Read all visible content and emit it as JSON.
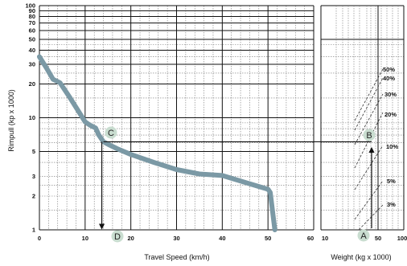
{
  "chart_data": {
    "type": "line",
    "x_axis": {
      "label": "Travel Speed (km/h)",
      "range": [
        0,
        60
      ],
      "ticks": [
        0,
        10,
        20,
        30,
        40,
        50,
        60
      ],
      "tick_labels": [
        "0",
        "10",
        "20",
        "30",
        "40",
        "50",
        "60"
      ],
      "minor_step": 2
    },
    "y_axis": {
      "label": "Rimpull  (kp x 1000)",
      "scale": "log",
      "range": [
        1,
        100
      ],
      "ticks": [
        1,
        2,
        3,
        5,
        10,
        20,
        30,
        40,
        50,
        60,
        70,
        80,
        90,
        100
      ],
      "tick_labels": [
        "1",
        "2",
        "3",
        "5",
        "10",
        "20",
        "30",
        "40",
        "50",
        "60",
        "70",
        "80",
        "90",
        "100"
      ]
    },
    "series": [
      {
        "color": "#7b99a5",
        "points": [
          [
            0,
            35
          ],
          [
            1.5,
            28
          ],
          [
            3,
            22
          ],
          [
            4.5,
            20.5
          ],
          [
            6.5,
            15.5
          ],
          [
            8.5,
            11.5
          ],
          [
            10,
            9.2
          ],
          [
            11,
            8.6
          ],
          [
            12.3,
            8.1
          ],
          [
            13,
            7
          ],
          [
            14,
            6.1
          ],
          [
            15,
            5.8
          ],
          [
            17,
            5.3
          ],
          [
            20,
            4.7
          ],
          [
            25,
            4.0
          ],
          [
            30,
            3.45
          ],
          [
            35,
            3.15
          ],
          [
            40,
            3.05
          ],
          [
            45,
            2.65
          ],
          [
            50,
            2.3
          ],
          [
            50.5,
            2.15
          ],
          [
            51.5,
            1.0
          ]
        ]
      }
    ],
    "weight_axis": {
      "label": "Weight (kg x 1000)",
      "tick_labels": [
        "10",
        "50",
        "100"
      ]
    },
    "grade_lines": [
      {
        "label": "3%",
        "value": 3
      },
      {
        "label": "5%",
        "value": 5
      },
      {
        "label": "10%",
        "value": 10
      },
      {
        "label": "20%",
        "value": 20
      },
      {
        "label": "30%",
        "value": 30
      },
      {
        "label": "40%",
        "value": 40
      },
      {
        "label": "50%",
        "value": 50
      }
    ],
    "reading_example": {
      "rimpull": 6.1,
      "speed": 14,
      "points": {
        "A": "A",
        "B": "B",
        "C": "C",
        "D": "D"
      }
    },
    "grid": true
  }
}
